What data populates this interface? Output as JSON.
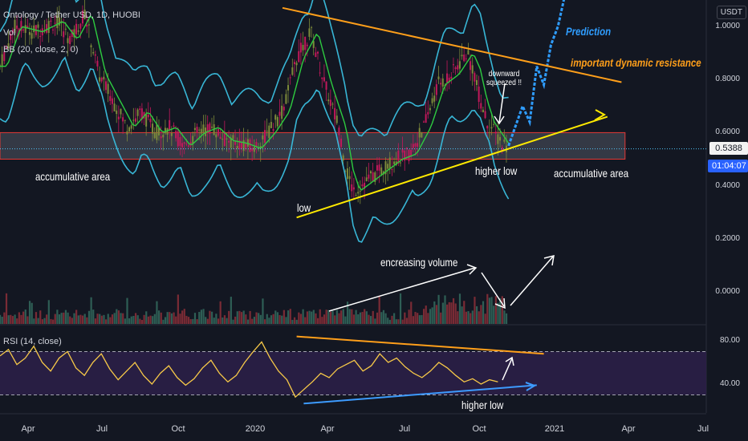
{
  "header": {
    "symbol_line": "Ontology / Tether USD, 1D, HUOBI",
    "volume_label": "Vol",
    "bb_label": "BB (20, close, 2, 0)",
    "rsi_label": "RSI (14, close)"
  },
  "currency_badge": "USDT",
  "price_badge": "0.5388",
  "timer_badge": "01:04:07",
  "colors": {
    "background": "#131722",
    "bb_band": "#38b6d6",
    "bb_basis": "#2ecc40",
    "candle_up": "#7d8a3a",
    "candle_down": "#c2185b",
    "volume_up": "#2e5e55",
    "volume_down": "#7a2b35",
    "rsi_line": "#f7c948",
    "rsi_fill": "#2b1f47",
    "resistance_line": "#ff9f1a",
    "support_line": "#ffea00",
    "prediction": "#2f9dff",
    "zone_border": "#e53935",
    "badge_blue": "#2962ff"
  },
  "annotations": {
    "prediction": "Prediction",
    "resistance": "important dynamic resistance",
    "downward": "downward\nsqueezed !!",
    "accum_left": "accumulative area",
    "accum_right": "accumulative area",
    "low": "low",
    "higher_low": "higher low",
    "volume_note": "encreasing volume",
    "rsi_higher_low": "higher low"
  },
  "chart_data": [
    {
      "type": "candlestick",
      "title": "Ontology / Tether USD, 1D, HUOBI",
      "y_ticks": [
        1.0,
        0.8,
        0.6,
        0.4,
        0.2,
        0.0
      ],
      "y_tick_labels": [
        "1.0000",
        "0.8000",
        "0.6000",
        "0.4000",
        "0.2000",
        "0.0000"
      ],
      "x_ticks": [
        "Apr",
        "Jul",
        "Oct",
        "2020",
        "Apr",
        "Jul",
        "Oct",
        "2021",
        "Apr",
        "Jul"
      ],
      "last_price": 0.5388,
      "price_path": [
        [
          0,
          0.85
        ],
        [
          0.02,
          1.0
        ],
        [
          0.05,
          0.98
        ],
        [
          0.08,
          1.02
        ],
        [
          0.1,
          0.95
        ],
        [
          0.12,
          1.05
        ],
        [
          0.14,
          0.82
        ],
        [
          0.16,
          0.72
        ],
        [
          0.18,
          0.62
        ],
        [
          0.2,
          0.68
        ],
        [
          0.22,
          0.6
        ],
        [
          0.24,
          0.62
        ],
        [
          0.26,
          0.55
        ],
        [
          0.28,
          0.6
        ],
        [
          0.3,
          0.62
        ],
        [
          0.32,
          0.57
        ],
        [
          0.34,
          0.56
        ],
        [
          0.36,
          0.54
        ],
        [
          0.38,
          0.6
        ],
        [
          0.4,
          0.68
        ],
        [
          0.42,
          0.88
        ],
        [
          0.44,
          0.98
        ],
        [
          0.46,
          0.78
        ],
        [
          0.47,
          0.7
        ],
        [
          0.48,
          0.62
        ],
        [
          0.49,
          0.46
        ],
        [
          0.5,
          0.38
        ],
        [
          0.52,
          0.42
        ],
        [
          0.54,
          0.46
        ],
        [
          0.56,
          0.5
        ],
        [
          0.58,
          0.52
        ],
        [
          0.6,
          0.62
        ],
        [
          0.62,
          0.78
        ],
        [
          0.64,
          0.82
        ],
        [
          0.66,
          0.9
        ],
        [
          0.67,
          0.84
        ],
        [
          0.68,
          0.72
        ],
        [
          0.69,
          0.64
        ],
        [
          0.7,
          0.6
        ],
        [
          0.71,
          0.56
        ],
        [
          0.72,
          0.55
        ]
      ],
      "prediction_path": [
        [
          0.72,
          0.55
        ],
        [
          0.74,
          0.7
        ],
        [
          0.75,
          0.64
        ],
        [
          0.76,
          0.85
        ],
        [
          0.77,
          0.78
        ],
        [
          0.78,
          0.93
        ],
        [
          0.79,
          1.0
        ],
        [
          0.8,
          1.12
        ]
      ],
      "accumulation_zone": [
        0.5,
        0.6
      ],
      "resistance_line": [
        [
          0.4,
          1.07
        ],
        [
          0.88,
          0.79
        ]
      ],
      "support_line": [
        [
          0.42,
          0.28
        ],
        [
          0.86,
          0.66
        ]
      ]
    },
    {
      "type": "rsi",
      "title": "RSI (14, close)",
      "y_ticks": [
        80,
        40
      ],
      "y_tick_labels": [
        "80.00",
        "40.00"
      ],
      "band": [
        30,
        70
      ],
      "values": [
        66,
        72,
        58,
        64,
        75,
        60,
        52,
        64,
        70,
        55,
        48,
        60,
        68,
        54,
        44,
        52,
        60,
        48,
        40,
        50,
        57,
        46,
        39,
        45,
        55,
        62,
        50,
        42,
        48,
        60,
        70,
        79,
        64,
        52,
        44,
        28,
        35,
        42,
        50,
        46,
        54,
        58,
        62,
        52,
        57,
        68,
        60,
        64,
        56,
        50,
        46,
        52,
        60,
        55,
        48,
        42,
        45,
        40,
        44,
        42
      ],
      "resistance_line": [
        [
          0.42,
          84
        ],
        [
          0.77,
          68
        ]
      ],
      "support_line": [
        [
          0.43,
          22
        ],
        [
          0.76,
          39
        ]
      ]
    }
  ]
}
